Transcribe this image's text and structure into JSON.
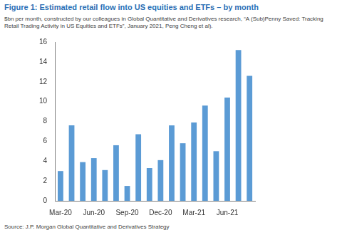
{
  "chart_data": {
    "type": "bar",
    "title": "Figure 1: Estimated retail flow into US equities and ETFs – by month",
    "subtitle": "$bn per month, constructed by our colleagues in Global Quantitative and Derivatives research, “A (Sub)Penny Saved: Tracking Retail Trading Activity in US Equities and ETFs”, January 2021, Peng Cheng et al).",
    "source": "Source: J.P. Morgan Global Quantitative and Derivatives Strategy",
    "categories": [
      "Mar-20",
      null,
      null,
      "Jun-20",
      null,
      null,
      "Sep-20",
      null,
      null,
      "Dec-20",
      null,
      null,
      "Mar-21",
      null,
      null,
      "Jun-21",
      null,
      null
    ],
    "values": [
      3.0,
      7.6,
      3.9,
      4.3,
      3.1,
      5.6,
      1.5,
      6.7,
      3.3,
      4.1,
      7.6,
      5.8,
      7.9,
      9.6,
      5.0,
      10.4,
      15.2,
      12.6
    ],
    "color": "#5b9bd5",
    "ylim": [
      0,
      16
    ],
    "yticks": [
      0,
      2,
      4,
      6,
      8,
      10,
      12,
      14,
      16
    ],
    "grid": false
  }
}
